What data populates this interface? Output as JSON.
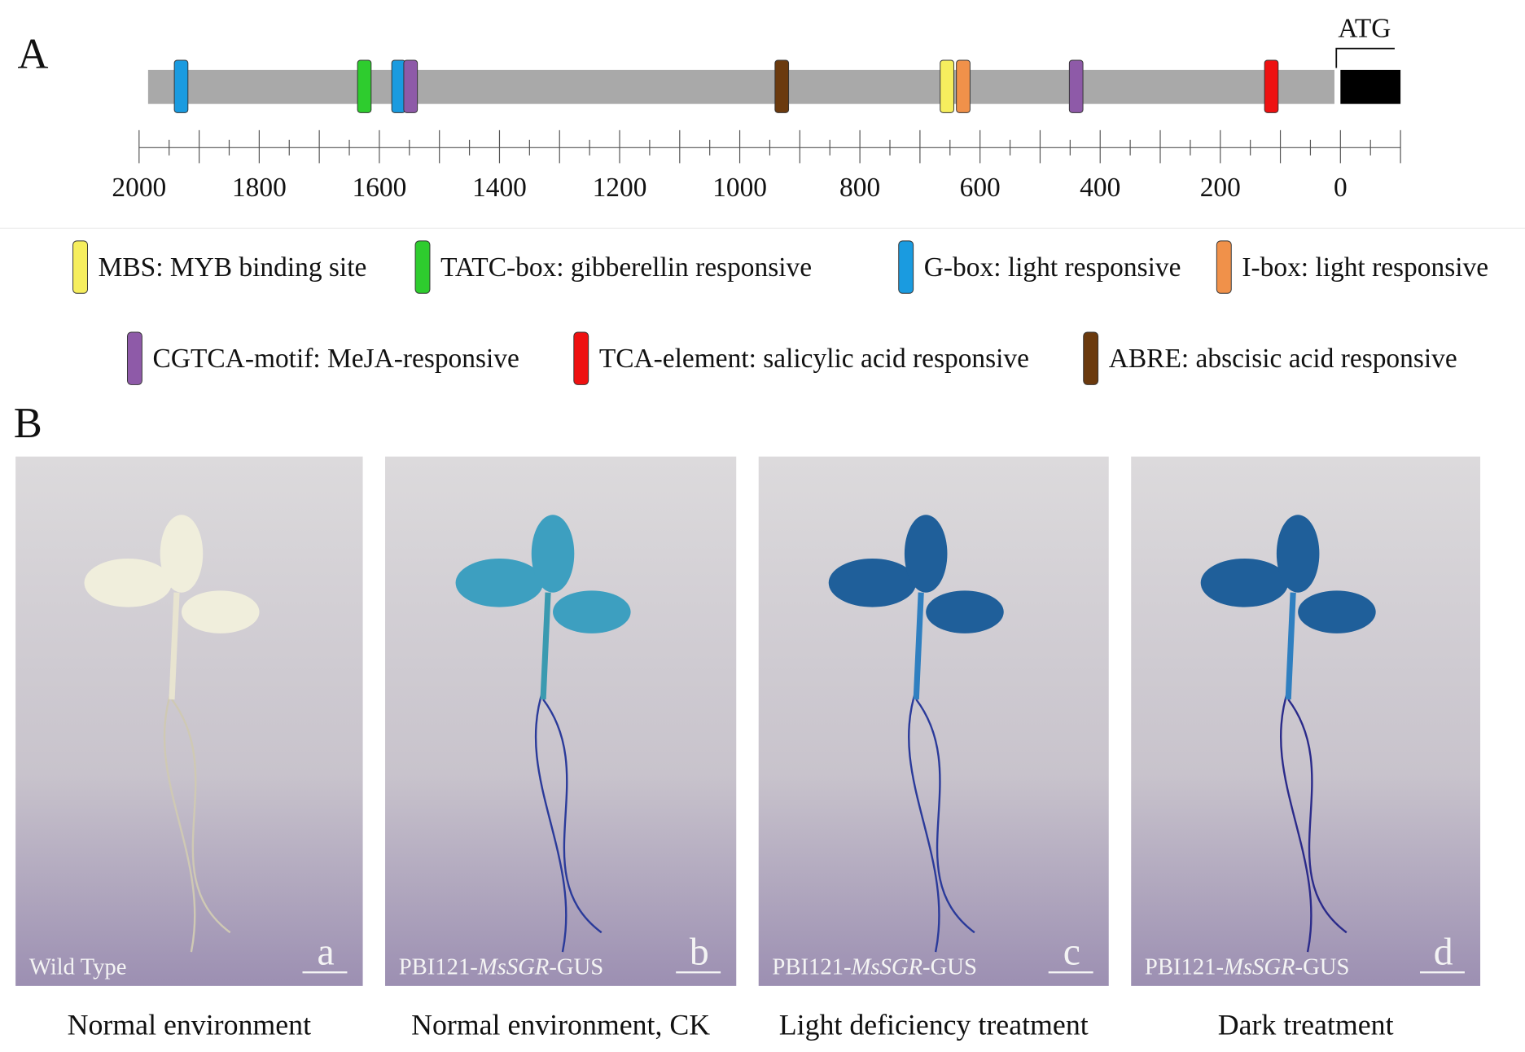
{
  "panel_a": {
    "label": "A",
    "start_label": "ATG",
    "xlim": [
      2000,
      -100
    ],
    "xticks": [
      2000,
      1800,
      1600,
      1400,
      1200,
      1000,
      800,
      600,
      400,
      200,
      0
    ],
    "minor_xticks": [
      1950,
      1900,
      1850,
      1750,
      1700,
      1650,
      1550,
      1500,
      1450,
      1350,
      1300,
      1250,
      1150,
      1100,
      1050,
      950,
      900,
      850,
      750,
      700,
      650,
      550,
      500,
      450,
      350,
      300,
      250,
      150,
      100,
      50,
      -50,
      -100
    ],
    "promoter": {
      "start": 1985,
      "end": 10,
      "color": "#a9a9a9"
    },
    "cds": {
      "start": 0,
      "end": -100,
      "color": "#000000"
    },
    "motifs": [
      {
        "position": 1930,
        "color": "#1a9be0"
      },
      {
        "position": 1625,
        "color": "#2ecc2e"
      },
      {
        "position": 1568,
        "color": "#1a9be0"
      },
      {
        "position": 1548,
        "color": "#8e5aa8"
      },
      {
        "position": 930,
        "color": "#6b3a0e"
      },
      {
        "position": 655,
        "color": "#f6ee5e"
      },
      {
        "position": 628,
        "color": "#f0914a"
      },
      {
        "position": 440,
        "color": "#8e5aa8"
      },
      {
        "position": 115,
        "color": "#ee1111"
      }
    ],
    "legend": [
      {
        "label": "MBS: MYB binding site",
        "color": "#f6ee5e"
      },
      {
        "label": "TATC-box: gibberellin responsive",
        "color": "#2ecc2e"
      },
      {
        "label": "G-box: light responsive",
        "color": "#1a9be0"
      },
      {
        "label": "I-box: light responsive",
        "color": "#f0914a"
      },
      {
        "label": "CGTCA-motif: MeJA-responsive",
        "color": "#8e5aa8"
      },
      {
        "label": "TCA-element: salicylic acid responsive",
        "color": "#ee1111"
      },
      {
        "label": "ABRE: abscisic acid responsive",
        "color": "#6b3a0e"
      }
    ]
  },
  "panel_b": {
    "label": "B",
    "photos": [
      {
        "letter": "a",
        "tag": [
          "Wild Type"
        ],
        "caption": "Normal environment"
      },
      {
        "letter": "b",
        "tag": [
          "PBI121-",
          "MsSGR",
          "-GUS"
        ],
        "caption": "Normal environment, CK"
      },
      {
        "letter": "c",
        "tag": [
          "PBI121-",
          "MsSGR",
          "-GUS"
        ],
        "caption": "Light deficiency treatment"
      },
      {
        "letter": "d",
        "tag": [
          "PBI121-",
          "MsSGR",
          "-GUS"
        ],
        "caption": "Dark treatment"
      }
    ]
  }
}
